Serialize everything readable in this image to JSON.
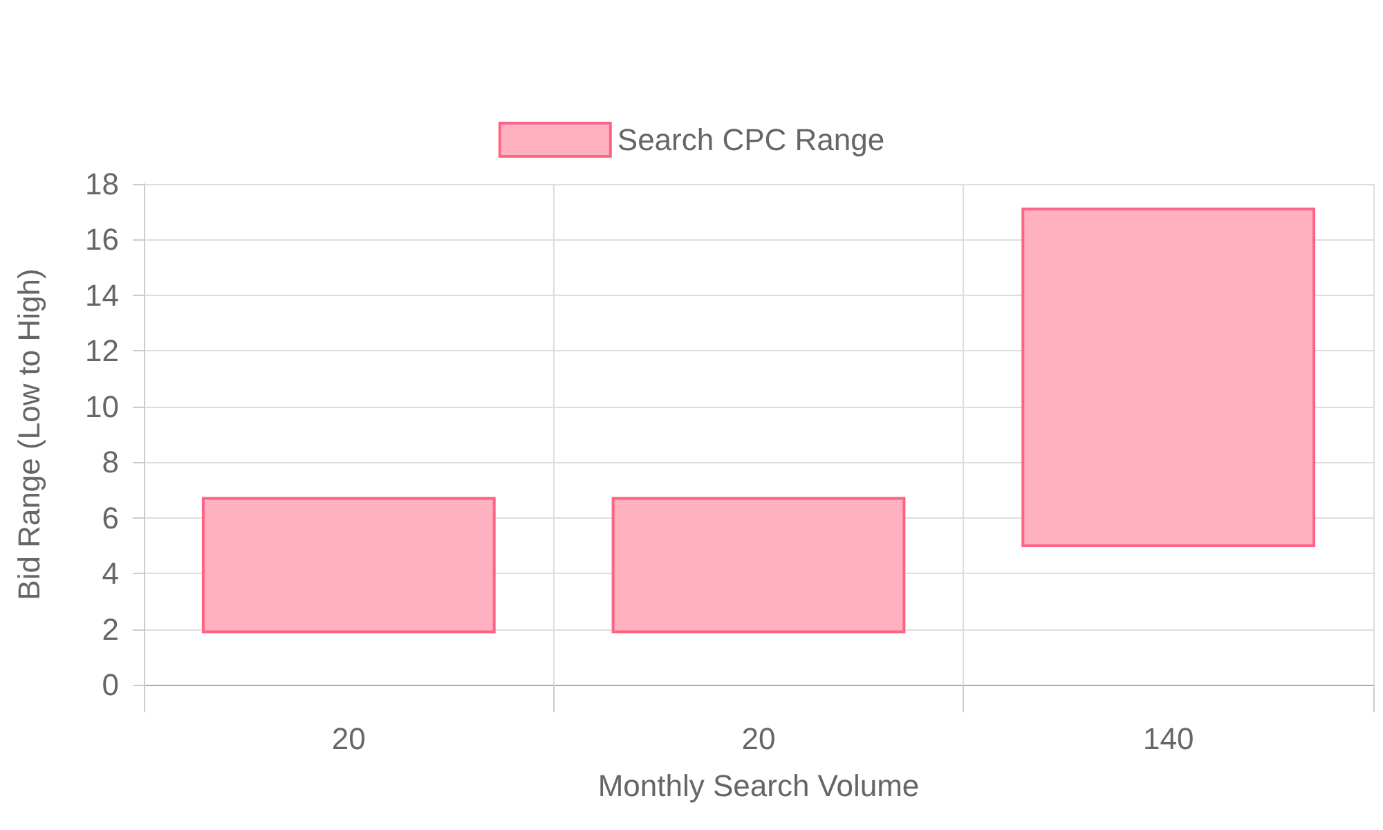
{
  "chart_data": {
    "type": "bar",
    "xlabel": "Monthly Search Volume",
    "ylabel": "Bid Range (Low to High)",
    "categories": [
      "20",
      "20",
      "140"
    ],
    "series": [
      {
        "name": "Search CPC Range",
        "color": "#ffb1c1",
        "values": [
          4.8,
          4.8,
          12.1
        ],
        "base": [
          1.9,
          1.9,
          5
        ]
      }
    ],
    "ylim": [
      0,
      18
    ],
    "yticks": [
      0,
      2,
      4,
      6,
      8,
      10,
      12,
      14,
      16,
      18
    ],
    "grid": true,
    "legend": "top"
  }
}
